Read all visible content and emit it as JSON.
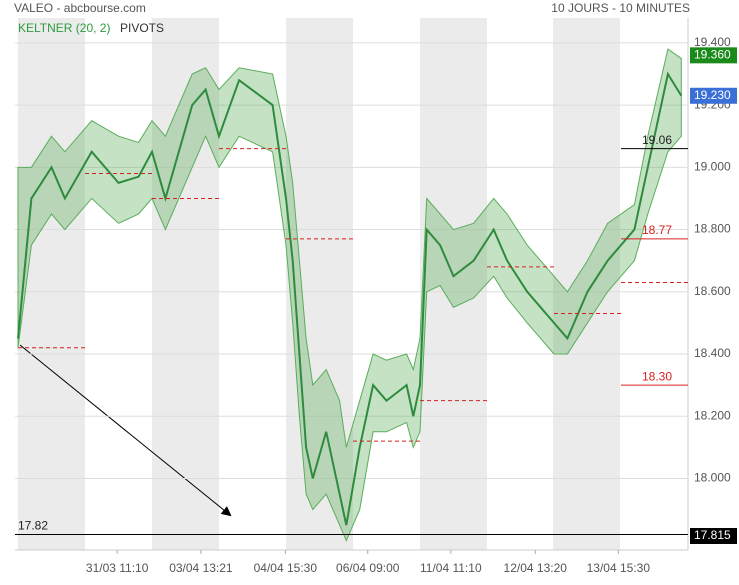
{
  "header": {
    "title": "VALEO - abcbourse.com",
    "period": "10 JOURS - 10 MINUTES",
    "indicator": "KELTNER (20, 2)",
    "overlay": "PIVOTS"
  },
  "chart_data": {
    "type": "line",
    "x": [
      0,
      0.2,
      0.5,
      0.7,
      1.1,
      1.5,
      1.8,
      2.0,
      2.2,
      2.6,
      2.8,
      3.0,
      3.3,
      3.8,
      4.0,
      4.1,
      4.2,
      4.3,
      4.4,
      4.6,
      4.8,
      4.9,
      5.1,
      5.3,
      5.5,
      5.8,
      5.9,
      6.0,
      6.1,
      6.3,
      6.5,
      6.8,
      7.1,
      7.3,
      7.6,
      7.8,
      8.0,
      8.2,
      8.5,
      8.8,
      9.2,
      9.4,
      9.7,
      9.9
    ],
    "values": [
      18.45,
      18.9,
      19.0,
      18.9,
      19.05,
      18.95,
      18.97,
      19.05,
      18.9,
      19.2,
      19.25,
      19.1,
      19.28,
      19.2,
      18.9,
      18.7,
      18.4,
      18.1,
      18.0,
      18.15,
      17.95,
      17.85,
      18.1,
      18.3,
      18.25,
      18.3,
      18.2,
      18.3,
      18.8,
      18.75,
      18.65,
      18.7,
      18.8,
      18.7,
      18.6,
      18.55,
      18.5,
      18.45,
      18.6,
      18.7,
      18.8,
      19.0,
      19.3,
      19.23
    ],
    "band_upper": [
      19.0,
      19.0,
      19.1,
      19.05,
      19.15,
      19.1,
      19.08,
      19.15,
      19.1,
      19.3,
      19.32,
      19.25,
      19.32,
      19.3,
      19.1,
      18.95,
      18.7,
      18.45,
      18.3,
      18.35,
      18.25,
      18.1,
      18.25,
      18.4,
      18.38,
      18.4,
      18.35,
      18.45,
      18.9,
      18.85,
      18.8,
      18.82,
      18.9,
      18.85,
      18.75,
      18.7,
      18.65,
      18.6,
      18.7,
      18.82,
      18.88,
      19.1,
      19.38,
      19.35
    ],
    "band_lower": [
      18.42,
      18.75,
      18.85,
      18.8,
      18.9,
      18.82,
      18.85,
      18.9,
      18.8,
      19.0,
      19.1,
      19.0,
      19.1,
      19.05,
      18.75,
      18.5,
      18.2,
      17.95,
      17.9,
      17.95,
      17.85,
      17.8,
      17.9,
      18.15,
      18.15,
      18.18,
      18.1,
      18.15,
      18.6,
      18.62,
      18.55,
      18.58,
      18.65,
      18.58,
      18.5,
      18.45,
      18.4,
      18.4,
      18.5,
      18.6,
      18.7,
      18.85,
      19.05,
      19.1
    ],
    "color": "#2e8b3e",
    "band_color": "#5aad5a",
    "pivots": {
      "values": [
        18.42,
        18.98,
        18.9,
        19.06,
        18.77,
        18.12,
        18.25,
        18.68,
        18.53,
        18.63
      ],
      "color": "#d62020"
    },
    "levels": {
      "values": [
        19.06,
        18.77,
        18.3,
        17.82
      ],
      "value_labels": [
        "19.06",
        "18.77",
        "18.30",
        "17.82"
      ],
      "colors": [
        "#000000",
        "#d62020",
        "#d62020",
        "#000000"
      ],
      "from": [
        9,
        9,
        9,
        0
      ]
    },
    "price_tags": {
      "values": [
        19.36,
        19.23,
        17.815
      ],
      "value_labels": [
        "19.360",
        "19.230",
        "17.815"
      ],
      "colors": [
        "#1a8a1a",
        "#3a6fd8",
        "#000000"
      ]
    },
    "xlim": [
      0,
      10
    ],
    "xticks": [
      {
        "value": 1.48,
        "label": "31/03 11:10"
      },
      {
        "value": 2.73,
        "label": "03/04 13:21"
      },
      {
        "value": 3.99,
        "label": "04/04 15:30"
      },
      {
        "value": 5.22,
        "label": "06/04 09:00"
      },
      {
        "value": 6.46,
        "label": "11/04 11:10"
      },
      {
        "value": 7.72,
        "label": "12/04 13:20"
      },
      {
        "value": 8.96,
        "label": "13/04 15:30"
      }
    ],
    "ylim": [
      17.77,
      19.48
    ],
    "yticks": [
      {
        "value": 18,
        "label": "18.000"
      },
      {
        "value": 18.2,
        "label": "18.200"
      },
      {
        "value": 18.4,
        "label": "18.400"
      },
      {
        "value": 18.6,
        "label": "18.600"
      },
      {
        "value": 18.8,
        "label": "18.800"
      },
      {
        "value": 19,
        "label": "19.000"
      },
      {
        "value": 19.2,
        "label": "19.200"
      },
      {
        "value": 19.4,
        "label": "19.400"
      }
    ],
    "grid": true
  }
}
